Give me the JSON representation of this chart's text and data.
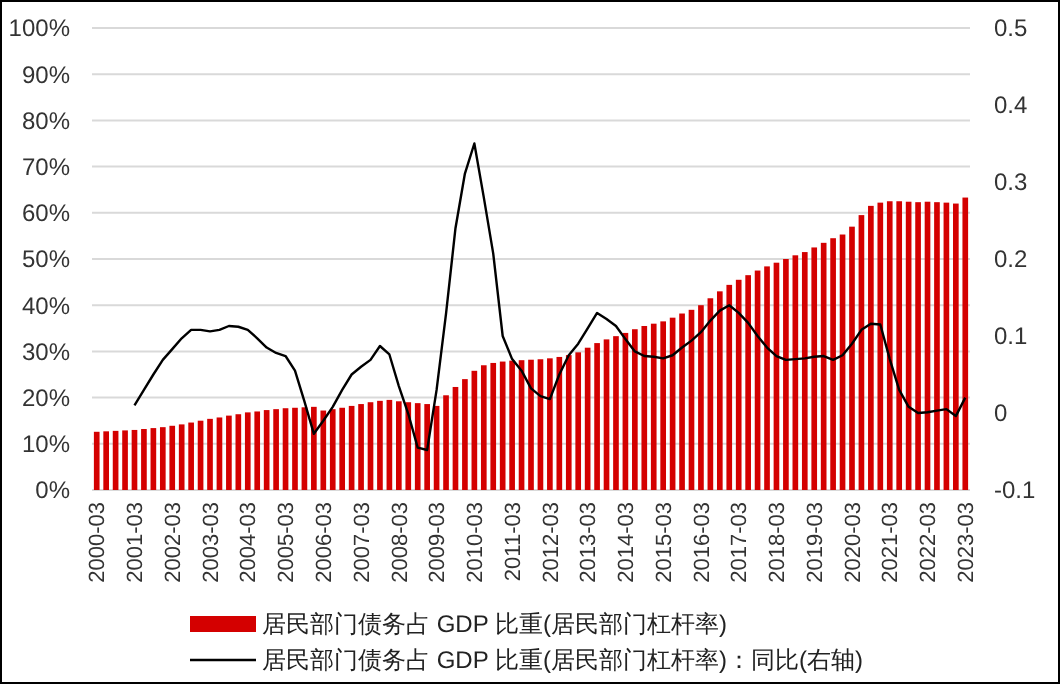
{
  "chart_data": {
    "type": "bar",
    "categories": [
      "2000-03",
      null,
      null,
      null,
      "2001-03",
      null,
      null,
      null,
      "2002-03",
      null,
      null,
      null,
      "2003-03",
      null,
      null,
      null,
      "2004-03",
      null,
      null,
      null,
      "2005-03",
      null,
      null,
      null,
      "2006-03",
      null,
      null,
      null,
      "2007-03",
      null,
      null,
      null,
      "2008-03",
      null,
      null,
      null,
      "2009-03",
      null,
      null,
      null,
      "2010-03",
      null,
      null,
      null,
      "2011-03",
      null,
      null,
      null,
      "2012-03",
      null,
      null,
      null,
      "2013-03",
      null,
      null,
      null,
      "2014-03",
      null,
      null,
      null,
      "2015-03",
      null,
      null,
      null,
      "2016-03",
      null,
      null,
      null,
      "2017-03",
      null,
      null,
      null,
      "2018-03",
      null,
      null,
      null,
      "2019-03",
      null,
      null,
      null,
      "2020-03",
      null,
      null,
      null,
      "2021-03",
      null,
      null,
      null,
      "2022-03",
      null,
      null,
      null,
      "2023-03"
    ],
    "series": [
      {
        "name": "居民部门债务占 GDP 比重(居民部门杠杆率)",
        "color": "#d40000",
        "values": [
          12.6,
          12.7,
          12.8,
          12.9,
          13.0,
          13.2,
          13.4,
          13.6,
          13.9,
          14.2,
          14.6,
          15.0,
          15.4,
          15.7,
          16.1,
          16.4,
          16.8,
          17.0,
          17.3,
          17.5,
          17.7,
          17.8,
          17.9,
          18.0,
          17.2,
          17.5,
          17.8,
          18.2,
          18.6,
          19.0,
          19.3,
          19.5,
          19.2,
          19.0,
          18.8,
          18.6,
          18.2,
          20.5,
          22.3,
          24.0,
          25.8,
          27.0,
          27.5,
          27.8,
          28.0,
          28.1,
          28.2,
          28.3,
          28.5,
          28.8,
          29.2,
          29.8,
          30.8,
          31.8,
          32.6,
          33.3,
          34.0,
          34.8,
          35.5,
          36.0,
          36.5,
          37.3,
          38.2,
          39.0,
          40.0,
          41.5,
          43.0,
          44.4,
          45.5,
          46.5,
          47.5,
          48.4,
          49.2,
          50.0,
          50.8,
          51.5,
          52.5,
          53.5,
          54.5,
          55.3,
          57.0,
          59.5,
          61.5,
          62.2,
          62.5,
          62.5,
          62.4,
          62.3,
          62.4,
          62.3,
          62.2,
          62.0,
          63.3
        ]
      },
      {
        "name": "居民部门债务占 GDP 比重(居民部门杠杆率)：同比(右轴)",
        "type": "line",
        "axis": "y2",
        "color": "#000000",
        "values": [
          null,
          null,
          null,
          null,
          0.01,
          0.03,
          0.05,
          0.069,
          0.083,
          0.097,
          0.108,
          0.108,
          0.106,
          0.108,
          0.113,
          0.112,
          0.108,
          0.097,
          0.085,
          0.078,
          0.074,
          0.055,
          0.015,
          -0.027,
          -0.01,
          0.008,
          0.03,
          0.05,
          0.06,
          0.069,
          0.087,
          0.076,
          0.035,
          -0.001,
          -0.045,
          -0.048,
          0.03,
          0.129,
          0.24,
          0.311,
          0.35,
          0.28,
          0.207,
          0.1,
          0.07,
          0.055,
          0.032,
          0.022,
          0.018,
          0.05,
          0.075,
          0.09,
          0.11,
          0.13,
          0.122,
          0.113,
          0.096,
          0.08,
          0.074,
          0.073,
          0.071,
          0.075,
          0.085,
          0.094,
          0.105,
          0.12,
          0.133,
          0.14,
          0.13,
          0.117,
          0.1,
          0.085,
          0.074,
          0.069,
          0.07,
          0.071,
          0.073,
          0.074,
          0.069,
          0.075,
          0.09,
          0.108,
          0.116,
          0.115,
          0.07,
          0.03,
          0.008,
          0.0,
          0.001,
          0.003,
          0.005,
          -0.004,
          0.02
        ]
      }
    ],
    "ylim": [
      0,
      100
    ],
    "yticks": [
      {
        "value": 0,
        "label": "0%"
      },
      {
        "value": 10,
        "label": "10%"
      },
      {
        "value": 20,
        "label": "20%"
      },
      {
        "value": 30,
        "label": "30%"
      },
      {
        "value": 40,
        "label": "40%"
      },
      {
        "value": 50,
        "label": "50%"
      },
      {
        "value": 60,
        "label": "60%"
      },
      {
        "value": 70,
        "label": "70%"
      },
      {
        "value": 80,
        "label": "80%"
      },
      {
        "value": 90,
        "label": "90%"
      },
      {
        "value": 100,
        "label": "100%"
      }
    ],
    "y2lim": [
      -0.1,
      0.5
    ],
    "y2ticks": [
      -0.1,
      0,
      0.1,
      0.2,
      0.3,
      0.4,
      0.5
    ],
    "grid": "y",
    "legend": "bottom"
  }
}
